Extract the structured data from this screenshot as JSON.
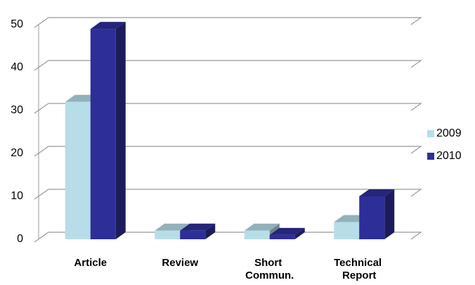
{
  "chart_data": {
    "type": "bar3d",
    "categories": [
      "Article",
      "Review",
      "Short Commun.",
      "Technical Report"
    ],
    "series": [
      {
        "name": "2009",
        "color": "#b7dde8",
        "values": [
          32,
          2,
          2,
          4
        ]
      },
      {
        "name": "2010",
        "color": "#2e2e99",
        "values": [
          49,
          2,
          1,
          10
        ]
      }
    ],
    "ylim": [
      0,
      50
    ],
    "yticks": [
      0,
      10,
      20,
      30,
      40,
      50
    ],
    "grid": true,
    "legend": "right"
  }
}
